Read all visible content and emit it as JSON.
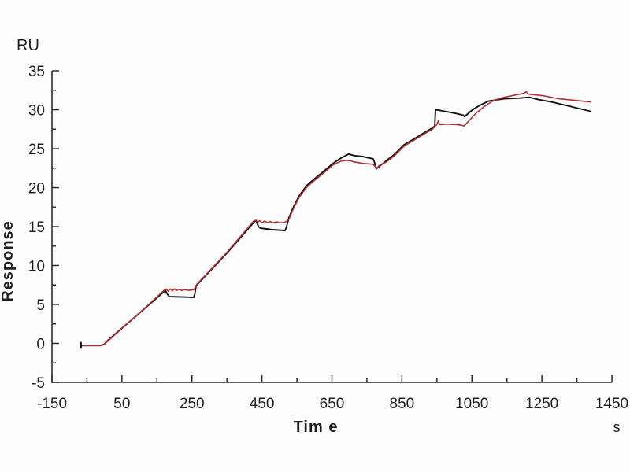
{
  "chart_data": {
    "type": "line",
    "title": "",
    "xlabel": "Tim e",
    "ylabel": "Response",
    "y_unit_label": "RU",
    "x_unit_label": "s",
    "axis_color": "#2b2b2b",
    "x_axis": {
      "min": -150,
      "max": 1450,
      "major_step": 200,
      "minor_step": 100,
      "tick_labels": [
        "-150",
        "50",
        "250",
        "450",
        "650",
        "850",
        "1050",
        "1250",
        "1450"
      ]
    },
    "y_axis": {
      "min": -5,
      "max": 35,
      "major_step": 5,
      "minor_step": 2.5,
      "tick_labels": [
        "-5",
        "0",
        "5",
        "10",
        "15",
        "20",
        "25",
        "30",
        "35"
      ]
    },
    "grid": "off",
    "legend": "none",
    "series": [
      {
        "name": "measured-response-black",
        "color": "#141414",
        "width": 1.9,
        "points": [
          [
            -67,
            0.1
          ],
          [
            -67,
            -0.6
          ],
          [
            -66,
            -0.25
          ],
          [
            -10,
            -0.25
          ],
          [
            0,
            -0.1
          ],
          [
            5,
            0.2
          ],
          [
            90,
            3.5
          ],
          [
            174,
            6.8
          ],
          [
            180,
            6.3
          ],
          [
            186,
            6.0
          ],
          [
            225,
            5.95
          ],
          [
            255,
            5.9
          ],
          [
            258,
            6.3
          ],
          [
            262,
            7.4
          ],
          [
            350,
            11.6
          ],
          [
            428,
            15.6
          ],
          [
            433,
            15.8
          ],
          [
            440,
            15.0
          ],
          [
            446,
            14.8
          ],
          [
            480,
            14.6
          ],
          [
            516,
            14.5
          ],
          [
            520,
            14.9
          ],
          [
            527,
            16.1
          ],
          [
            541,
            17.6
          ],
          [
            557,
            19.0
          ],
          [
            579,
            20.3
          ],
          [
            602,
            21.2
          ],
          [
            624,
            22.0
          ],
          [
            653,
            23.1
          ],
          [
            676,
            23.8
          ],
          [
            698,
            24.3
          ],
          [
            715,
            24.1
          ],
          [
            737,
            24.0
          ],
          [
            768,
            23.7
          ],
          [
            772,
            23.2
          ],
          [
            777,
            22.4
          ],
          [
            782,
            22.6
          ],
          [
            804,
            23.4
          ],
          [
            827,
            24.2
          ],
          [
            856,
            25.5
          ],
          [
            883,
            26.2
          ],
          [
            912,
            27.0
          ],
          [
            935,
            27.6
          ],
          [
            944,
            27.9
          ],
          [
            946,
            30.0
          ],
          [
            960,
            29.9
          ],
          [
            1007,
            29.5
          ],
          [
            1025,
            29.3
          ],
          [
            1029,
            29.1
          ],
          [
            1034,
            29.3
          ],
          [
            1052,
            30.0
          ],
          [
            1074,
            30.6
          ],
          [
            1097,
            31.1
          ],
          [
            1142,
            31.4
          ],
          [
            1187,
            31.5
          ],
          [
            1214,
            31.6
          ],
          [
            1240,
            31.3
          ],
          [
            1277,
            31.0
          ],
          [
            1333,
            30.4
          ],
          [
            1389,
            29.8
          ]
        ]
      },
      {
        "name": "kinetic-fit-red",
        "color": "#b03030",
        "width": 1.6,
        "points": [
          [
            -62,
            -0.3
          ],
          [
            -12,
            -0.3
          ],
          [
            0,
            -0.15
          ],
          [
            6,
            0.15
          ],
          [
            90,
            3.5
          ],
          [
            170,
            6.8
          ],
          [
            176,
            7.0
          ],
          [
            182,
            6.7
          ],
          [
            188,
            7.0
          ],
          [
            194,
            6.75
          ],
          [
            200,
            7.0
          ],
          [
            206,
            6.8
          ],
          [
            212,
            6.95
          ],
          [
            220,
            6.8
          ],
          [
            228,
            6.9
          ],
          [
            238,
            6.82
          ],
          [
            248,
            6.85
          ],
          [
            256,
            6.9
          ],
          [
            264,
            7.6
          ],
          [
            350,
            11.7
          ],
          [
            426,
            15.7
          ],
          [
            432,
            15.8
          ],
          [
            438,
            15.6
          ],
          [
            444,
            15.75
          ],
          [
            450,
            15.5
          ],
          [
            458,
            15.7
          ],
          [
            466,
            15.5
          ],
          [
            474,
            15.65
          ],
          [
            482,
            15.5
          ],
          [
            492,
            15.6
          ],
          [
            502,
            15.48
          ],
          [
            512,
            15.52
          ],
          [
            518,
            15.6
          ],
          [
            527,
            15.9
          ],
          [
            541,
            17.4
          ],
          [
            557,
            18.8
          ],
          [
            579,
            20.1
          ],
          [
            602,
            21.0
          ],
          [
            624,
            21.8
          ],
          [
            653,
            22.9
          ],
          [
            676,
            23.4
          ],
          [
            692,
            23.5
          ],
          [
            703,
            23.45
          ],
          [
            712,
            23.3
          ],
          [
            740,
            23.1
          ],
          [
            768,
            23.0
          ],
          [
            774,
            22.7
          ],
          [
            779,
            22.5
          ],
          [
            784,
            22.8
          ],
          [
            806,
            23.3
          ],
          [
            829,
            24.1
          ],
          [
            858,
            25.4
          ],
          [
            885,
            26.1
          ],
          [
            914,
            26.9
          ],
          [
            937,
            27.5
          ],
          [
            948,
            28.0
          ],
          [
            951,
            28.2
          ],
          [
            954,
            28.6
          ],
          [
            958,
            28.1
          ],
          [
            980,
            28.15
          ],
          [
            1005,
            28.1
          ],
          [
            1022,
            28.0
          ],
          [
            1027,
            27.9
          ],
          [
            1040,
            28.5
          ],
          [
            1063,
            29.6
          ],
          [
            1085,
            30.4
          ],
          [
            1112,
            31.2
          ],
          [
            1142,
            31.6
          ],
          [
            1175,
            31.9
          ],
          [
            1198,
            32.1
          ],
          [
            1205,
            32.3
          ],
          [
            1212,
            32.0
          ],
          [
            1254,
            31.8
          ],
          [
            1299,
            31.4
          ],
          [
            1344,
            31.2
          ],
          [
            1389,
            31.0
          ]
        ]
      }
    ]
  }
}
